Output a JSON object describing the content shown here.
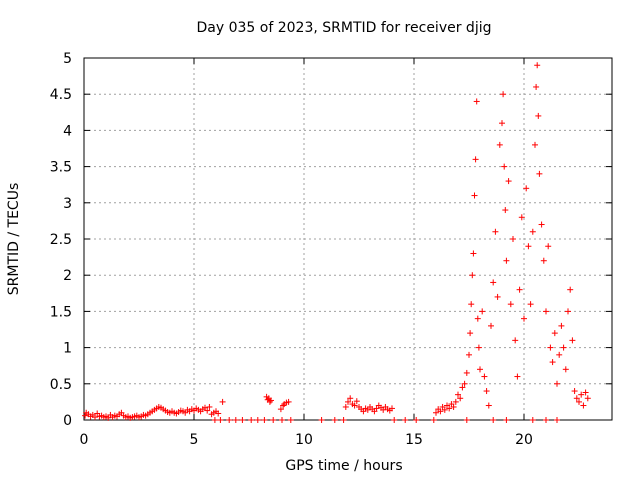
{
  "chart_data": {
    "type": "scatter",
    "title": "Day 035 of 2023, SRMTID for receiver djig",
    "xlabel": "GPS time / hours",
    "ylabel": "SRMTID / TECUs",
    "xlim": [
      0,
      24
    ],
    "ylim": [
      0,
      5
    ],
    "xticks": [
      0,
      5,
      10,
      15,
      20
    ],
    "yticks": [
      0,
      0.5,
      1,
      1.5,
      2,
      2.5,
      3,
      3.5,
      4,
      4.5,
      5
    ],
    "xtick_labels": [
      "0",
      "5",
      "10",
      "15",
      "20"
    ],
    "ytick_labels": [
      "0",
      "0.5",
      "1",
      "1.5",
      "2",
      "2.5",
      "3",
      "3.5",
      "4",
      "4.5",
      "5"
    ],
    "grid": true,
    "marker": "+",
    "series": [
      {
        "name": "SRMTID",
        "color": "#ff0000",
        "points": [
          [
            0.05,
            0.06
          ],
          [
            0.1,
            0.1
          ],
          [
            0.2,
            0.08
          ],
          [
            0.3,
            0.05
          ],
          [
            0.4,
            0.07
          ],
          [
            0.5,
            0.04
          ],
          [
            0.6,
            0.09
          ],
          [
            0.7,
            0.05
          ],
          [
            0.8,
            0.06
          ],
          [
            0.9,
            0.04
          ],
          [
            1.0,
            0.05
          ],
          [
            1.1,
            0.03
          ],
          [
            1.2,
            0.07
          ],
          [
            1.3,
            0.04
          ],
          [
            1.4,
            0.06
          ],
          [
            1.5,
            0.05
          ],
          [
            1.6,
            0.08
          ],
          [
            1.7,
            0.1
          ],
          [
            1.8,
            0.06
          ],
          [
            1.9,
            0.04
          ],
          [
            2.0,
            0.05
          ],
          [
            2.1,
            0.03
          ],
          [
            2.2,
            0.04
          ],
          [
            2.3,
            0.05
          ],
          [
            2.4,
            0.06
          ],
          [
            2.5,
            0.04
          ],
          [
            2.6,
            0.05
          ],
          [
            2.7,
            0.07
          ],
          [
            2.8,
            0.06
          ],
          [
            2.9,
            0.08
          ],
          [
            3.0,
            0.1
          ],
          [
            3.1,
            0.12
          ],
          [
            3.2,
            0.14
          ],
          [
            3.3,
            0.16
          ],
          [
            3.4,
            0.18
          ],
          [
            3.5,
            0.17
          ],
          [
            3.6,
            0.15
          ],
          [
            3.7,
            0.13
          ],
          [
            3.8,
            0.11
          ],
          [
            3.9,
            0.1
          ],
          [
            4.0,
            0.12
          ],
          [
            4.1,
            0.1
          ],
          [
            4.2,
            0.09
          ],
          [
            4.3,
            0.11
          ],
          [
            4.4,
            0.13
          ],
          [
            4.5,
            0.12
          ],
          [
            4.6,
            0.1
          ],
          [
            4.7,
            0.14
          ],
          [
            4.8,
            0.12
          ],
          [
            4.9,
            0.15
          ],
          [
            5.0,
            0.13
          ],
          [
            5.1,
            0.16
          ],
          [
            5.2,
            0.14
          ],
          [
            5.3,
            0.12
          ],
          [
            5.4,
            0.15
          ],
          [
            5.5,
            0.17
          ],
          [
            5.6,
            0.13
          ],
          [
            5.7,
            0.18
          ],
          [
            5.8,
            0.08
          ],
          [
            5.9,
            0.1
          ],
          [
            6.0,
            0.12
          ],
          [
            6.1,
            0.09
          ],
          [
            6.2,
            0.0
          ],
          [
            6.3,
            0.25
          ],
          [
            5.95,
            0.0
          ],
          [
            6.6,
            0.0
          ],
          [
            6.9,
            0.0
          ],
          [
            7.2,
            0.0
          ],
          [
            7.6,
            0.0
          ],
          [
            7.9,
            0.0
          ],
          [
            8.2,
            0.0
          ],
          [
            8.3,
            0.32
          ],
          [
            8.35,
            0.28
          ],
          [
            8.4,
            0.3
          ],
          [
            8.45,
            0.25
          ],
          [
            8.5,
            0.27
          ],
          [
            8.6,
            0.0
          ],
          [
            9.0,
            0.0
          ],
          [
            8.95,
            0.15
          ],
          [
            9.05,
            0.2
          ],
          [
            9.1,
            0.22
          ],
          [
            9.2,
            0.24
          ],
          [
            9.3,
            0.25
          ],
          [
            9.4,
            0.0
          ],
          [
            10.8,
            0.0
          ],
          [
            11.4,
            0.0
          ],
          [
            11.8,
            0.0
          ],
          [
            11.9,
            0.18
          ],
          [
            12.0,
            0.25
          ],
          [
            12.1,
            0.3
          ],
          [
            12.2,
            0.22
          ],
          [
            12.3,
            0.2
          ],
          [
            12.4,
            0.26
          ],
          [
            12.5,
            0.18
          ],
          [
            12.6,
            0.15
          ],
          [
            12.7,
            0.12
          ],
          [
            12.8,
            0.16
          ],
          [
            12.9,
            0.14
          ],
          [
            13.0,
            0.18
          ],
          [
            13.1,
            0.15
          ],
          [
            13.2,
            0.12
          ],
          [
            13.3,
            0.16
          ],
          [
            13.4,
            0.2
          ],
          [
            13.5,
            0.17
          ],
          [
            13.6,
            0.14
          ],
          [
            13.7,
            0.18
          ],
          [
            13.8,
            0.15
          ],
          [
            13.9,
            0.13
          ],
          [
            14.0,
            0.16
          ],
          [
            14.1,
            0.0
          ],
          [
            14.6,
            0.0
          ],
          [
            15.1,
            0.0
          ],
          [
            15.9,
            0.0
          ],
          [
            16.0,
            0.1
          ],
          [
            16.1,
            0.15
          ],
          [
            16.2,
            0.12
          ],
          [
            16.3,
            0.18
          ],
          [
            16.4,
            0.14
          ],
          [
            16.5,
            0.2
          ],
          [
            16.6,
            0.16
          ],
          [
            16.7,
            0.22
          ],
          [
            16.8,
            0.18
          ],
          [
            16.9,
            0.25
          ],
          [
            17.0,
            0.35
          ],
          [
            17.1,
            0.3
          ],
          [
            17.2,
            0.45
          ],
          [
            17.3,
            0.5
          ],
          [
            17.4,
            0.65
          ],
          [
            17.5,
            0.9
          ],
          [
            17.55,
            1.2
          ],
          [
            17.6,
            1.6
          ],
          [
            17.65,
            2.0
          ],
          [
            17.7,
            2.3
          ],
          [
            17.75,
            3.1
          ],
          [
            17.8,
            3.6
          ],
          [
            17.85,
            4.4
          ],
          [
            17.9,
            1.4
          ],
          [
            17.95,
            1.0
          ],
          [
            18.0,
            0.7
          ],
          [
            18.1,
            1.5
          ],
          [
            18.2,
            0.6
          ],
          [
            18.3,
            0.4
          ],
          [
            18.4,
            0.2
          ],
          [
            18.5,
            1.3
          ],
          [
            18.6,
            1.9
          ],
          [
            18.7,
            2.6
          ],
          [
            18.8,
            1.7
          ],
          [
            18.9,
            3.8
          ],
          [
            19.0,
            4.1
          ],
          [
            19.05,
            4.5
          ],
          [
            19.1,
            3.5
          ],
          [
            19.15,
            2.9
          ],
          [
            19.2,
            2.2
          ],
          [
            19.3,
            3.3
          ],
          [
            19.4,
            1.6
          ],
          [
            19.5,
            2.5
          ],
          [
            19.6,
            1.1
          ],
          [
            19.7,
            0.6
          ],
          [
            19.8,
            1.8
          ],
          [
            19.9,
            2.8
          ],
          [
            20.0,
            1.4
          ],
          [
            20.1,
            3.2
          ],
          [
            20.2,
            2.4
          ],
          [
            20.3,
            1.6
          ],
          [
            20.4,
            2.6
          ],
          [
            20.5,
            3.8
          ],
          [
            20.55,
            4.6
          ],
          [
            20.6,
            4.9
          ],
          [
            20.65,
            4.2
          ],
          [
            20.7,
            3.4
          ],
          [
            20.8,
            2.7
          ],
          [
            20.9,
            2.2
          ],
          [
            21.0,
            1.5
          ],
          [
            21.1,
            2.4
          ],
          [
            21.2,
            1.0
          ],
          [
            21.3,
            0.8
          ],
          [
            21.4,
            1.2
          ],
          [
            21.5,
            0.5
          ],
          [
            21.6,
            0.9
          ],
          [
            21.7,
            1.3
          ],
          [
            21.8,
            1.0
          ],
          [
            21.9,
            0.7
          ],
          [
            22.0,
            1.5
          ],
          [
            22.1,
            1.8
          ],
          [
            22.2,
            1.1
          ],
          [
            22.3,
            0.4
          ],
          [
            22.4,
            0.3
          ],
          [
            22.5,
            0.25
          ],
          [
            22.6,
            0.35
          ],
          [
            22.7,
            0.2
          ],
          [
            22.8,
            0.38
          ],
          [
            22.9,
            0.3
          ],
          [
            17.4,
            0.0
          ],
          [
            18.6,
            0.0
          ],
          [
            19.2,
            0.0
          ],
          [
            20.4,
            0.0
          ],
          [
            21.0,
            0.0
          ],
          [
            21.5,
            0.0
          ]
        ]
      }
    ]
  }
}
